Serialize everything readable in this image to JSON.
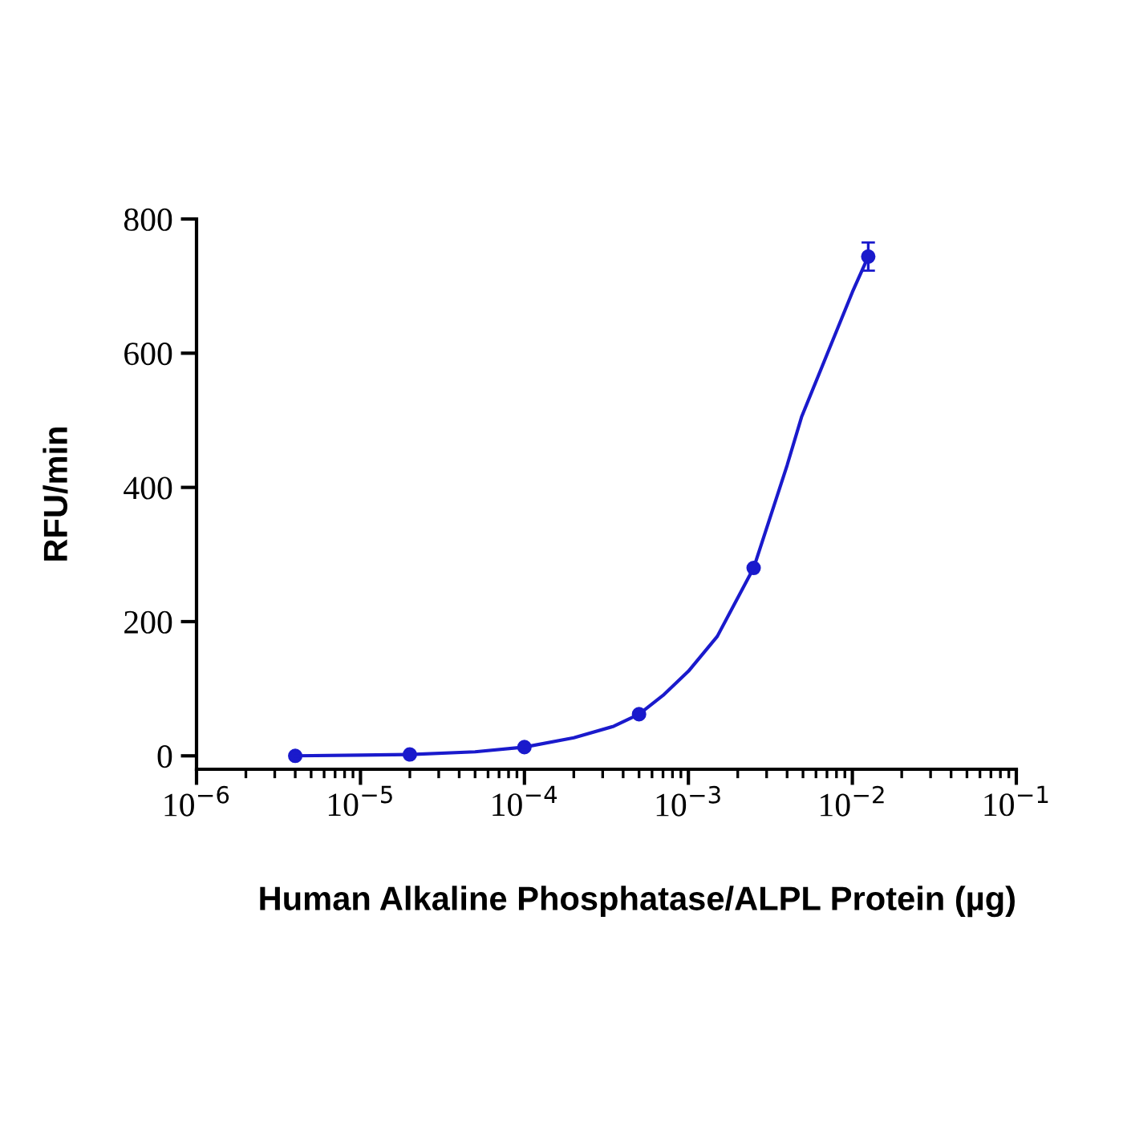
{
  "chart_data": {
    "type": "scatter",
    "xlabel": "Human Alkaline Phosphatase/ALPL Protein (µg)",
    "ylabel": "RFU/min",
    "x": [
      4e-06,
      2e-05,
      0.0001,
      0.0005,
      0.0025,
      0.0125
    ],
    "series": [
      {
        "marker": "circle",
        "color": "#1a1acc",
        "values": [
          0,
          2,
          13,
          62,
          280,
          744
        ],
        "errors": [
          null,
          null,
          null,
          null,
          null,
          21
        ]
      },
      {
        "type": "line",
        "color": "#1a1acc",
        "x": [
          4e-06,
          1e-05,
          2e-05,
          5e-05,
          0.0001,
          0.0002,
          0.00035,
          0.0005,
          0.0007,
          0.001,
          0.0015,
          0.0025,
          0.004,
          0.0049,
          0.007,
          0.01,
          0.0125
        ],
        "values": [
          0,
          1,
          2,
          6,
          13,
          27,
          44,
          62,
          90,
          126,
          178,
          280,
          433,
          505,
          598,
          691,
          744
        ]
      }
    ],
    "log": "x",
    "xlim": [
      1e-06,
      0.1
    ],
    "xticks": [
      {
        "value": 1e-06,
        "label": "10$^{−6}$"
      },
      {
        "value": 1e-05,
        "label": "10$^{−5}$"
      },
      {
        "value": 0.0001,
        "label": "10$^{−4}$"
      },
      {
        "value": 0.001,
        "label": "10$^{−3}$"
      },
      {
        "value": 0.01,
        "label": "10$^{−2}$"
      },
      {
        "value": 0.1,
        "label": "10$^{−1}$"
      }
    ],
    "ylim": [
      -20,
      800
    ],
    "yticks": [
      0,
      200,
      400,
      600,
      800
    ],
    "grid": false,
    "legend": false
  }
}
